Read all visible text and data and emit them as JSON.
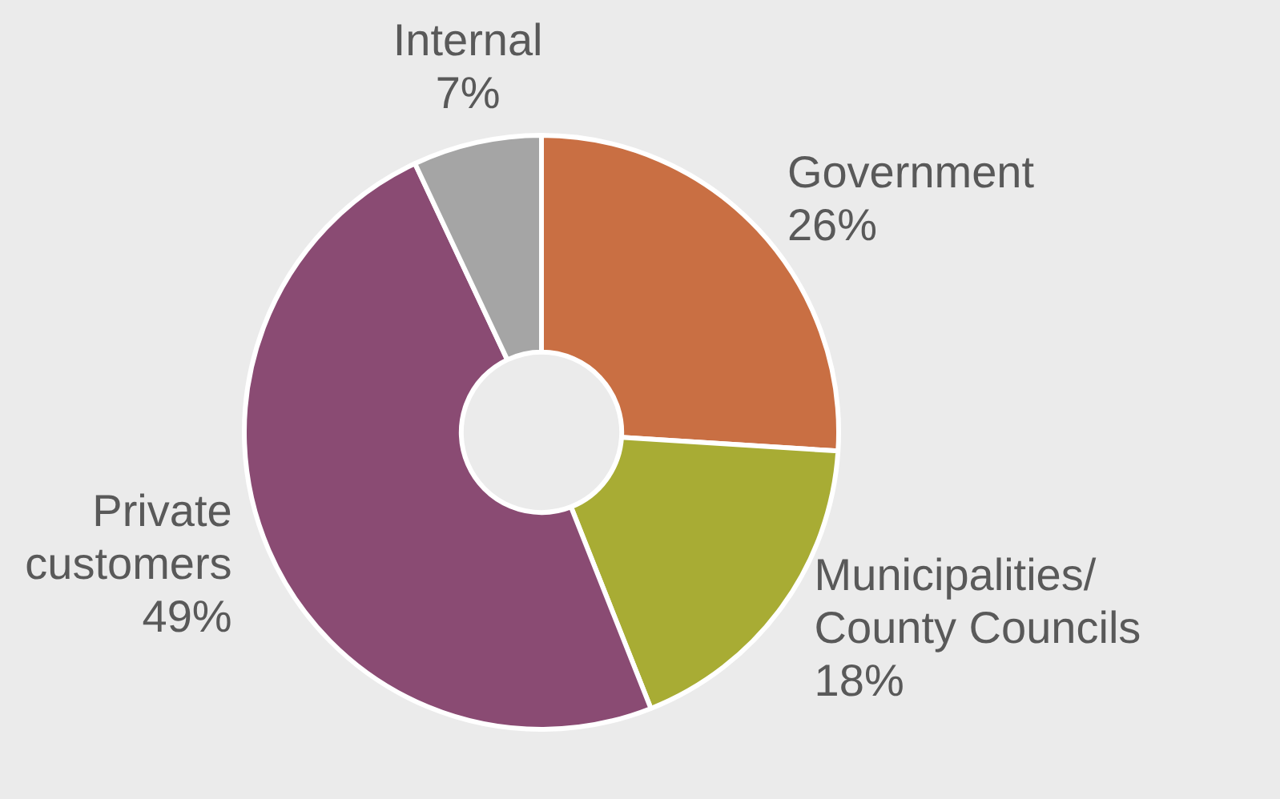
{
  "chart_data": {
    "type": "donut",
    "categories": [
      "Government",
      "Municipalities/\nCounty Councils",
      "Private\ncustomers",
      "Internal"
    ],
    "values": [
      26,
      18,
      49,
      7
    ],
    "colors": [
      "#c96f43",
      "#a8ac34",
      "#8a4b73",
      "#a5a5a5"
    ],
    "value_labels": [
      "26%",
      "18%",
      "49%",
      "7%"
    ],
    "legend": false
  }
}
